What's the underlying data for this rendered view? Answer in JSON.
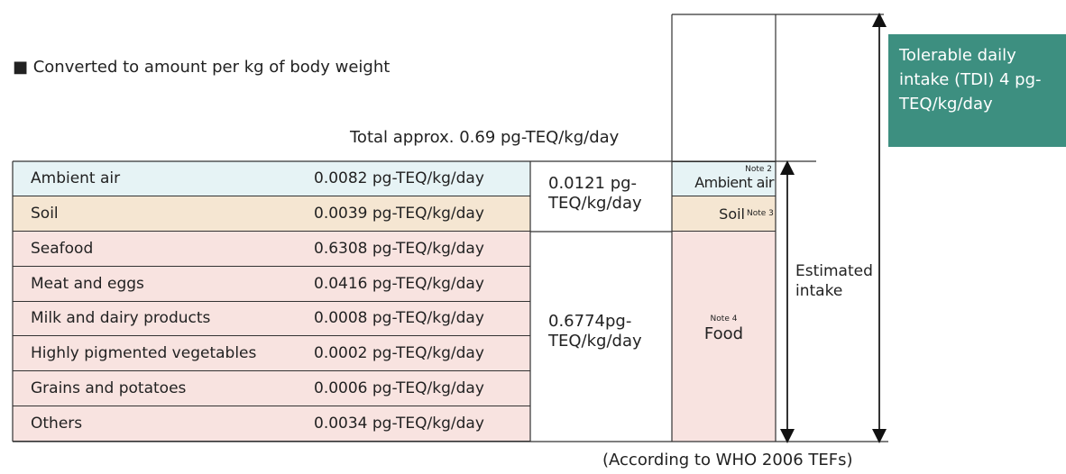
{
  "heading": "■ Converted to amount per kg of body weight",
  "total": "Total approx. 0.69 pg-TEQ/kg/day",
  "table": {
    "rows": [
      [
        "Ambient air",
        "0.0082 pg-TEQ/kg/day"
      ],
      [
        "Soil",
        "0.0039 pg-TEQ/kg/day"
      ],
      [
        "Seafood",
        "0.6308 pg-TEQ/kg/day"
      ],
      [
        "Meat and eggs",
        "0.0416 pg-TEQ/kg/day"
      ],
      [
        "Milk and dairy products",
        "0.0008 pg-TEQ/kg/day"
      ],
      [
        "Highly pigmented vegetables",
        "0.0002 pg-TEQ/kg/day"
      ],
      [
        "Grains and potatoes",
        "0.0006 pg-TEQ/kg/day"
      ],
      [
        "Others",
        "0.0034 pg-TEQ/kg/day"
      ]
    ]
  },
  "subtotals": [
    "0.0121 pg-TEQ/kg/day",
    "0.6774pg-TEQ/kg/day"
  ],
  "bar": {
    "ambient": "Ambient air",
    "ambient_note": "Note 2",
    "soil": "Soil",
    "soil_note": "Note 3",
    "food": "Food",
    "food_note": "Note 4"
  },
  "estimated": "Estimated intake",
  "tdi": "Tolerable daily intake (TDI) 4 pg-TEQ/kg/day",
  "source": "(According to WHO 2006 TEFs)"
}
